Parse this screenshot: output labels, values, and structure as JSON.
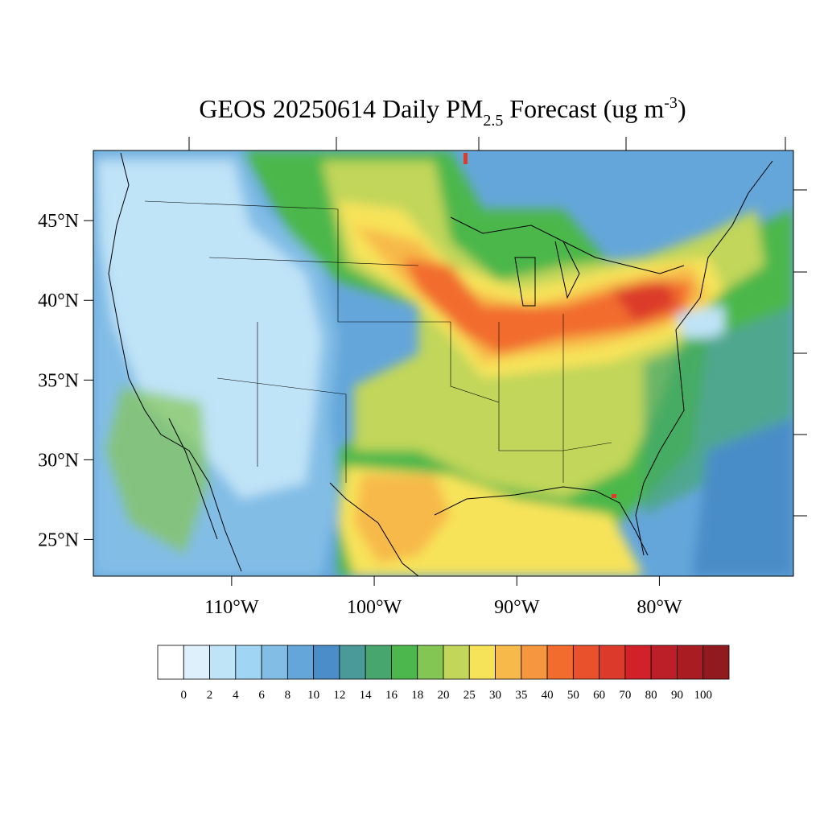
{
  "title": {
    "main": "GEOS 20250614 Daily PM",
    "sub": "2.5",
    "mid": " Forecast (ug m",
    "sup": "-3",
    "end": ")"
  },
  "map": {
    "xlim": [
      -119.7,
      -70.6
    ],
    "ylim": [
      22.7,
      49.4
    ],
    "xticks": [
      {
        "value": -110,
        "label": "110°W"
      },
      {
        "value": -100,
        "label": "100°W"
      },
      {
        "value": -90,
        "label": "90°W"
      },
      {
        "value": -80,
        "label": "80°W"
      }
    ],
    "yticks": [
      {
        "value": 25,
        "label": "25°N"
      },
      {
        "value": 30,
        "label": "30°N"
      },
      {
        "value": 35,
        "label": "35°N"
      },
      {
        "value": 40,
        "label": "40°N"
      },
      {
        "value": 45,
        "label": "45°N"
      }
    ]
  },
  "colorbar": {
    "levels": [
      0,
      2,
      4,
      6,
      8,
      10,
      12,
      14,
      16,
      18,
      20,
      25,
      30,
      35,
      40,
      50,
      60,
      70,
      80,
      90,
      100
    ],
    "colors": [
      "#ffffff",
      "#ddf0fb",
      "#bfe3f7",
      "#a0d6f3",
      "#82bde6",
      "#64a6da",
      "#4a8dc8",
      "#4a9a9a",
      "#46a66e",
      "#4cb74c",
      "#84c653",
      "#c1d65a",
      "#f7e35a",
      "#f7b94a",
      "#f6963e",
      "#f26c2e",
      "#e8512c",
      "#dc3a2a",
      "#d32129",
      "#bc1f27",
      "#a81c22",
      "#911a1e"
    ]
  }
}
